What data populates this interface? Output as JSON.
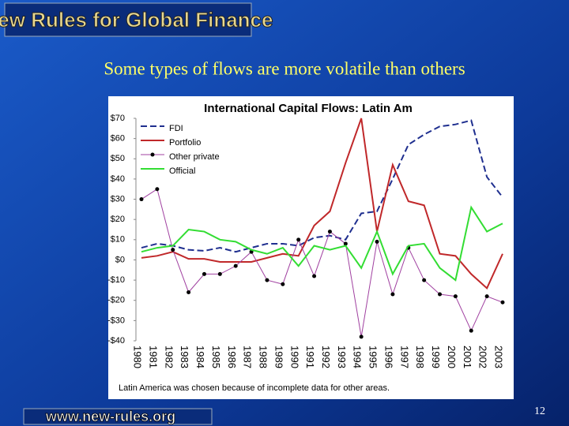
{
  "slide": {
    "header": "New Rules for Global Finance",
    "subtitle": "Some types of flows are more volatile than others",
    "caption": "Latin America was chosen because of incomplete data for other areas.",
    "footer_url": "www.new-rules.org",
    "page_number": "12"
  },
  "chart_data": {
    "type": "line",
    "title": "International Capital Flows: Latin Am",
    "categories": [
      "1980",
      "1981",
      "1982",
      "1983",
      "1984",
      "1985",
      "1986",
      "1987",
      "1988",
      "1989",
      "1990",
      "1991",
      "1992",
      "1993",
      "1994",
      "1995",
      "1996",
      "1997",
      "1998",
      "1999",
      "2000",
      "2001",
      "2002",
      "2003"
    ],
    "series": [
      {
        "name": "FDI",
        "color": "#1f2f8f",
        "dash": true,
        "values": [
          6,
          8,
          7,
          5,
          4.5,
          6,
          4,
          6,
          8,
          8,
          7,
          11,
          12,
          10,
          23,
          24,
          40,
          57,
          62,
          66,
          67,
          69,
          41,
          31
        ]
      },
      {
        "name": "Portfolio",
        "color": "#c0282a",
        "values": [
          1,
          2,
          4,
          0.5,
          0.5,
          -1,
          -1,
          -1,
          1,
          3,
          2,
          17,
          24,
          48,
          70,
          14,
          47,
          29,
          27,
          3,
          2,
          -7,
          -14,
          3
        ]
      },
      {
        "name": "Other private",
        "color": "#a040a0",
        "markers": true,
        "values": [
          30,
          35,
          5,
          -16,
          -7,
          -7,
          -3,
          4,
          -10,
          -12,
          10,
          -8,
          14,
          8,
          -38,
          9,
          -17,
          6,
          -10,
          -17,
          -18,
          -35,
          -18,
          -21
        ]
      },
      {
        "name": "Official",
        "color": "#33dd33",
        "values": [
          4,
          6,
          7,
          15,
          14,
          10,
          9,
          5,
          3,
          6,
          -3,
          7,
          5,
          7,
          -4,
          14,
          -7,
          7,
          8,
          -4,
          -10,
          26,
          14,
          18
        ]
      }
    ],
    "ylim": [
      -40,
      70
    ],
    "yticks": [
      {
        "value": 70,
        "label": "$70"
      },
      {
        "value": 60,
        "label": "$60"
      },
      {
        "value": 50,
        "label": "$50"
      },
      {
        "value": 40,
        "label": "$40"
      },
      {
        "value": 30,
        "label": "$30"
      },
      {
        "value": 20,
        "label": "$20"
      },
      {
        "value": 10,
        "label": "$10"
      },
      {
        "value": 0,
        "label": "$0"
      },
      {
        "value": -10,
        "label": "-$10"
      },
      {
        "value": -20,
        "label": "-$20"
      },
      {
        "value": -30,
        "label": "-$30"
      },
      {
        "value": -40,
        "label": "-$40"
      }
    ],
    "legend": "upper left"
  }
}
